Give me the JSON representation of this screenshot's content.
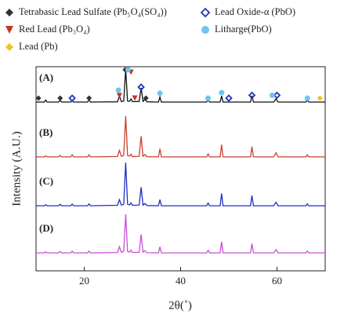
{
  "chart_data": {
    "type": "line",
    "xlabel": "2θ(˚)",
    "ylabel": "Intensity (A.U.)",
    "xlim": [
      10,
      70
    ],
    "xticks": [
      20,
      40,
      60
    ],
    "ylim": [
      0,
      100
    ],
    "x": [
      10,
      11.7,
      12,
      12.3,
      14.7,
      15,
      15.3,
      17.2,
      17.5,
      17.8,
      20.7,
      21,
      21.3,
      26.9,
      27.3,
      27.7,
      28.2,
      28.6,
      29.0,
      29.4,
      29.7,
      30.0,
      31.4,
      31.8,
      32.2,
      32.6,
      33.0,
      35.4,
      35.7,
      36.0,
      45.4,
      45.7,
      46.0,
      48.2,
      48.5,
      48.8,
      54.5,
      54.8,
      55.1,
      59.3,
      59.8,
      60.2,
      66.0,
      66.3,
      66.6,
      70
    ],
    "series": [
      {
        "name": "(A)",
        "color": "#111111",
        "values": [
          82.7,
          82.7,
          83.7,
          82.7,
          82.7,
          83.5,
          82.7,
          82.7,
          83.5,
          82.7,
          82.7,
          83.7,
          82.7,
          82.8,
          85.7,
          82.9,
          83.2,
          98.8,
          83.2,
          83.0,
          84.2,
          82.9,
          83.0,
          89.7,
          83.0,
          84.0,
          82.8,
          82.7,
          85.2,
          82.7,
          82.7,
          83.8,
          82.7,
          82.7,
          85.7,
          82.7,
          82.7,
          85.8,
          82.7,
          82.7,
          84.3,
          82.7,
          82.7,
          83.6,
          82.7,
          82.7
        ]
      },
      {
        "name": "(B)",
        "color": "#c8412f",
        "values": [
          55.8,
          55.8,
          56.3,
          55.8,
          55.8,
          56.6,
          55.8,
          55.8,
          56.8,
          55.8,
          55.8,
          56.8,
          55.8,
          56.0,
          59.0,
          56.1,
          56.5,
          75.8,
          56.5,
          56.2,
          57.2,
          56.0,
          56.1,
          66.0,
          56.1,
          57.0,
          55.9,
          55.8,
          59.8,
          55.8,
          55.8,
          57.3,
          55.8,
          55.8,
          61.8,
          55.8,
          55.8,
          60.8,
          55.8,
          55.8,
          57.8,
          55.8,
          55.8,
          56.8,
          55.8,
          55.8
        ]
      },
      {
        "name": "(C)",
        "color": "#1f2fc8",
        "values": [
          31.9,
          31.9,
          32.4,
          31.9,
          31.9,
          32.6,
          31.9,
          31.9,
          32.7,
          31.9,
          31.9,
          32.8,
          31.9,
          32.1,
          34.9,
          32.2,
          32.6,
          53.0,
          32.6,
          32.3,
          33.3,
          32.1,
          32.2,
          41.0,
          32.2,
          33.0,
          32.0,
          31.9,
          34.9,
          31.9,
          31.9,
          33.2,
          31.9,
          31.9,
          37.9,
          31.9,
          31.9,
          36.9,
          31.9,
          31.9,
          33.6,
          31.9,
          31.9,
          32.8,
          31.9,
          31.9
        ]
      },
      {
        "name": "(D)",
        "color": "#c84fd8",
        "values": [
          8.8,
          8.8,
          9.3,
          8.8,
          8.8,
          9.5,
          8.8,
          8.8,
          9.6,
          8.8,
          8.8,
          9.7,
          8.8,
          9.0,
          11.8,
          9.1,
          9.5,
          27.7,
          9.5,
          9.2,
          10.2,
          9.0,
          9.1,
          17.8,
          9.1,
          9.9,
          8.9,
          8.8,
          11.8,
          8.8,
          8.8,
          10.1,
          8.8,
          8.8,
          14.3,
          8.8,
          8.8,
          13.3,
          8.8,
          8.8,
          10.4,
          8.8,
          8.8,
          9.7,
          8.8,
          8.8
        ]
      }
    ],
    "phases": [
      {
        "name": "Tetrabasic Lead Sulfate (Pb₅O₄(SO₄))",
        "color": "#333333",
        "shape": "diamond",
        "x": [
          10.5,
          15,
          21,
          28.5,
          32.8
        ],
        "y": [
          84.6,
          84.6,
          84.6,
          98.5,
          84.6
        ]
      },
      {
        "name": "Red Lead (Pb₃O₄)",
        "color": "#c8351f",
        "shape": "triangle",
        "x": [
          27.3,
          29.7,
          30.5
        ],
        "y": [
          85.8,
          97.3,
          84.6
        ]
      },
      {
        "name": "Lead (Pb)",
        "color": "#f0c419",
        "shape": "diamond",
        "x": [
          68.9
        ],
        "y": [
          84.6
        ]
      },
      {
        "name": "Lead Oxide-α (PbO)",
        "color": "#2233bb",
        "shape": "diamond-open",
        "x": [
          17.5,
          31.8,
          50,
          54.8,
          60
        ],
        "y": [
          84.6,
          90,
          84.6,
          86,
          86
        ]
      },
      {
        "name": "Litharge(PbO)",
        "color": "#6ec6ee",
        "shape": "circle",
        "x": [
          27.1,
          29.1,
          35.7,
          45.7,
          48.5,
          59,
          66.3
        ],
        "y": [
          88.5,
          98.5,
          87,
          84.6,
          87.3,
          86,
          84.6
        ]
      }
    ]
  }
}
